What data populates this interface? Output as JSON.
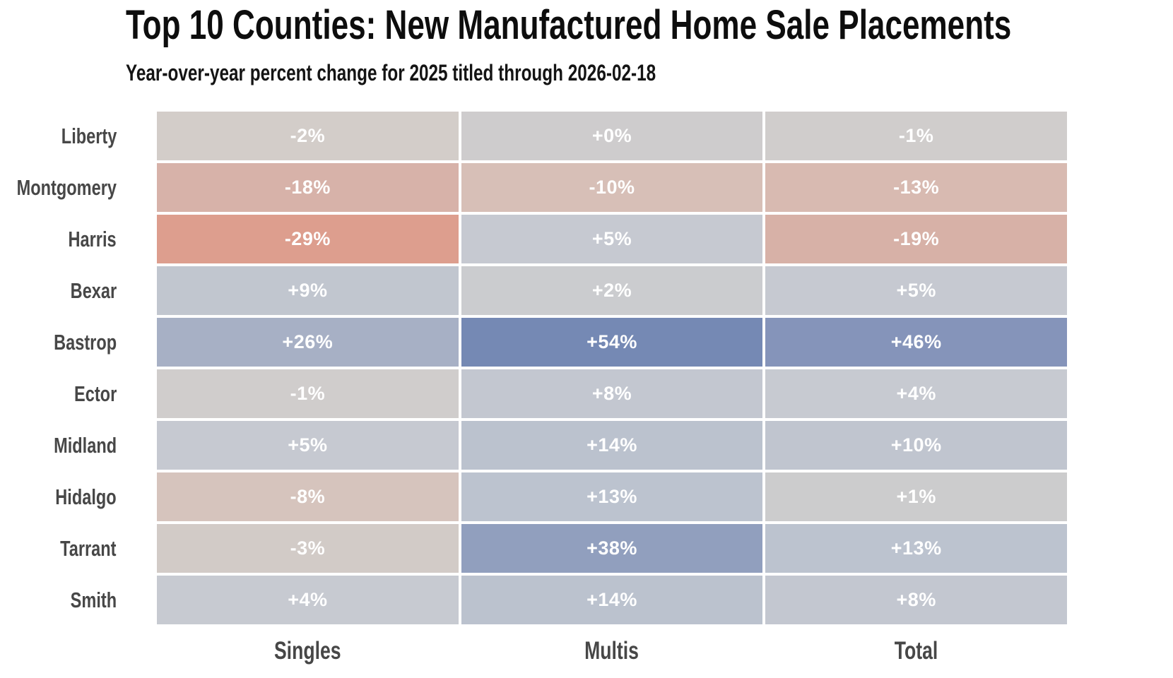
{
  "title": "Top 10 Counties: New Manufactured Home Sale Placements",
  "subtitle": "Year-over-year percent change for 2025 titled through 2026-02-18",
  "colors": {
    "background": "#ffffff",
    "title_text": "#0d0d0d",
    "axis_label_text": "#474747",
    "cell_text": "#ffffff",
    "negative_extreme": "#dd9e8e",
    "neutral": "#cdcccd",
    "positive_extreme": "#7589b4"
  },
  "chart_data": {
    "type": "heatmap",
    "title": "Top 10 Counties: New Manufactured Home Sale Placements",
    "subtitle": "Year-over-year percent change for 2025 titled through 2026-02-18",
    "value_format": "signed percent (year-over-year change)",
    "legend": "none",
    "grid": "white gaps between cells",
    "colorscale": "diverging: salmon red (negative) -> neutral gray (0) -> slate blue (positive)",
    "columns": [
      "Singles",
      "Multis",
      "Total"
    ],
    "rows": [
      "Liberty",
      "Montgomery",
      "Harris",
      "Bexar",
      "Bastrop",
      "Ector",
      "Midland",
      "Hidalgo",
      "Tarrant",
      "Smith"
    ],
    "values": [
      [
        -2,
        0,
        -1
      ],
      [
        -18,
        -10,
        -13
      ],
      [
        -29,
        5,
        -19
      ],
      [
        9,
        2,
        5
      ],
      [
        26,
        54,
        46
      ],
      [
        -1,
        8,
        4
      ],
      [
        5,
        14,
        10
      ],
      [
        -8,
        13,
        1
      ],
      [
        -3,
        38,
        13
      ],
      [
        4,
        14,
        8
      ]
    ],
    "labels": [
      [
        "-2%",
        "+0%",
        "-1%"
      ],
      [
        "-18%",
        "-10%",
        "-13%"
      ],
      [
        "-29%",
        "+5%",
        "-19%"
      ],
      [
        "+9%",
        "+2%",
        "+5%"
      ],
      [
        "+26%",
        "+54%",
        "+46%"
      ],
      [
        "-1%",
        "+8%",
        "+4%"
      ],
      [
        "+5%",
        "+14%",
        "+10%"
      ],
      [
        "-8%",
        "+13%",
        "+1%"
      ],
      [
        "-3%",
        "+38%",
        "+13%"
      ],
      [
        "+4%",
        "+14%",
        "+8%"
      ]
    ],
    "cell_colors": [
      [
        "#d3cdc9",
        "#cecccd",
        "#d0cdcc"
      ],
      [
        "#d7b2a9",
        "#d7bfb7",
        "#d8bab1"
      ],
      [
        "#dd9e8e",
        "#c6c9d1",
        "#d7b1a7"
      ],
      [
        "#c1c6cf",
        "#cbcccf",
        "#c6c9d1"
      ],
      [
        "#a7b0c5",
        "#7589b4",
        "#8594ba"
      ],
      [
        "#d0cdcc",
        "#c3c7d0",
        "#c7cad1"
      ],
      [
        "#c6c9d1",
        "#bbc2ce",
        "#c0c5cf"
      ],
      [
        "#d6c4bd",
        "#bcc3cf",
        "#cccccd"
      ],
      [
        "#d2cbc7",
        "#919fbe",
        "#bcc3cf"
      ],
      [
        "#c7cad1",
        "#bbc2ce",
        "#c3c7d0"
      ]
    ]
  }
}
